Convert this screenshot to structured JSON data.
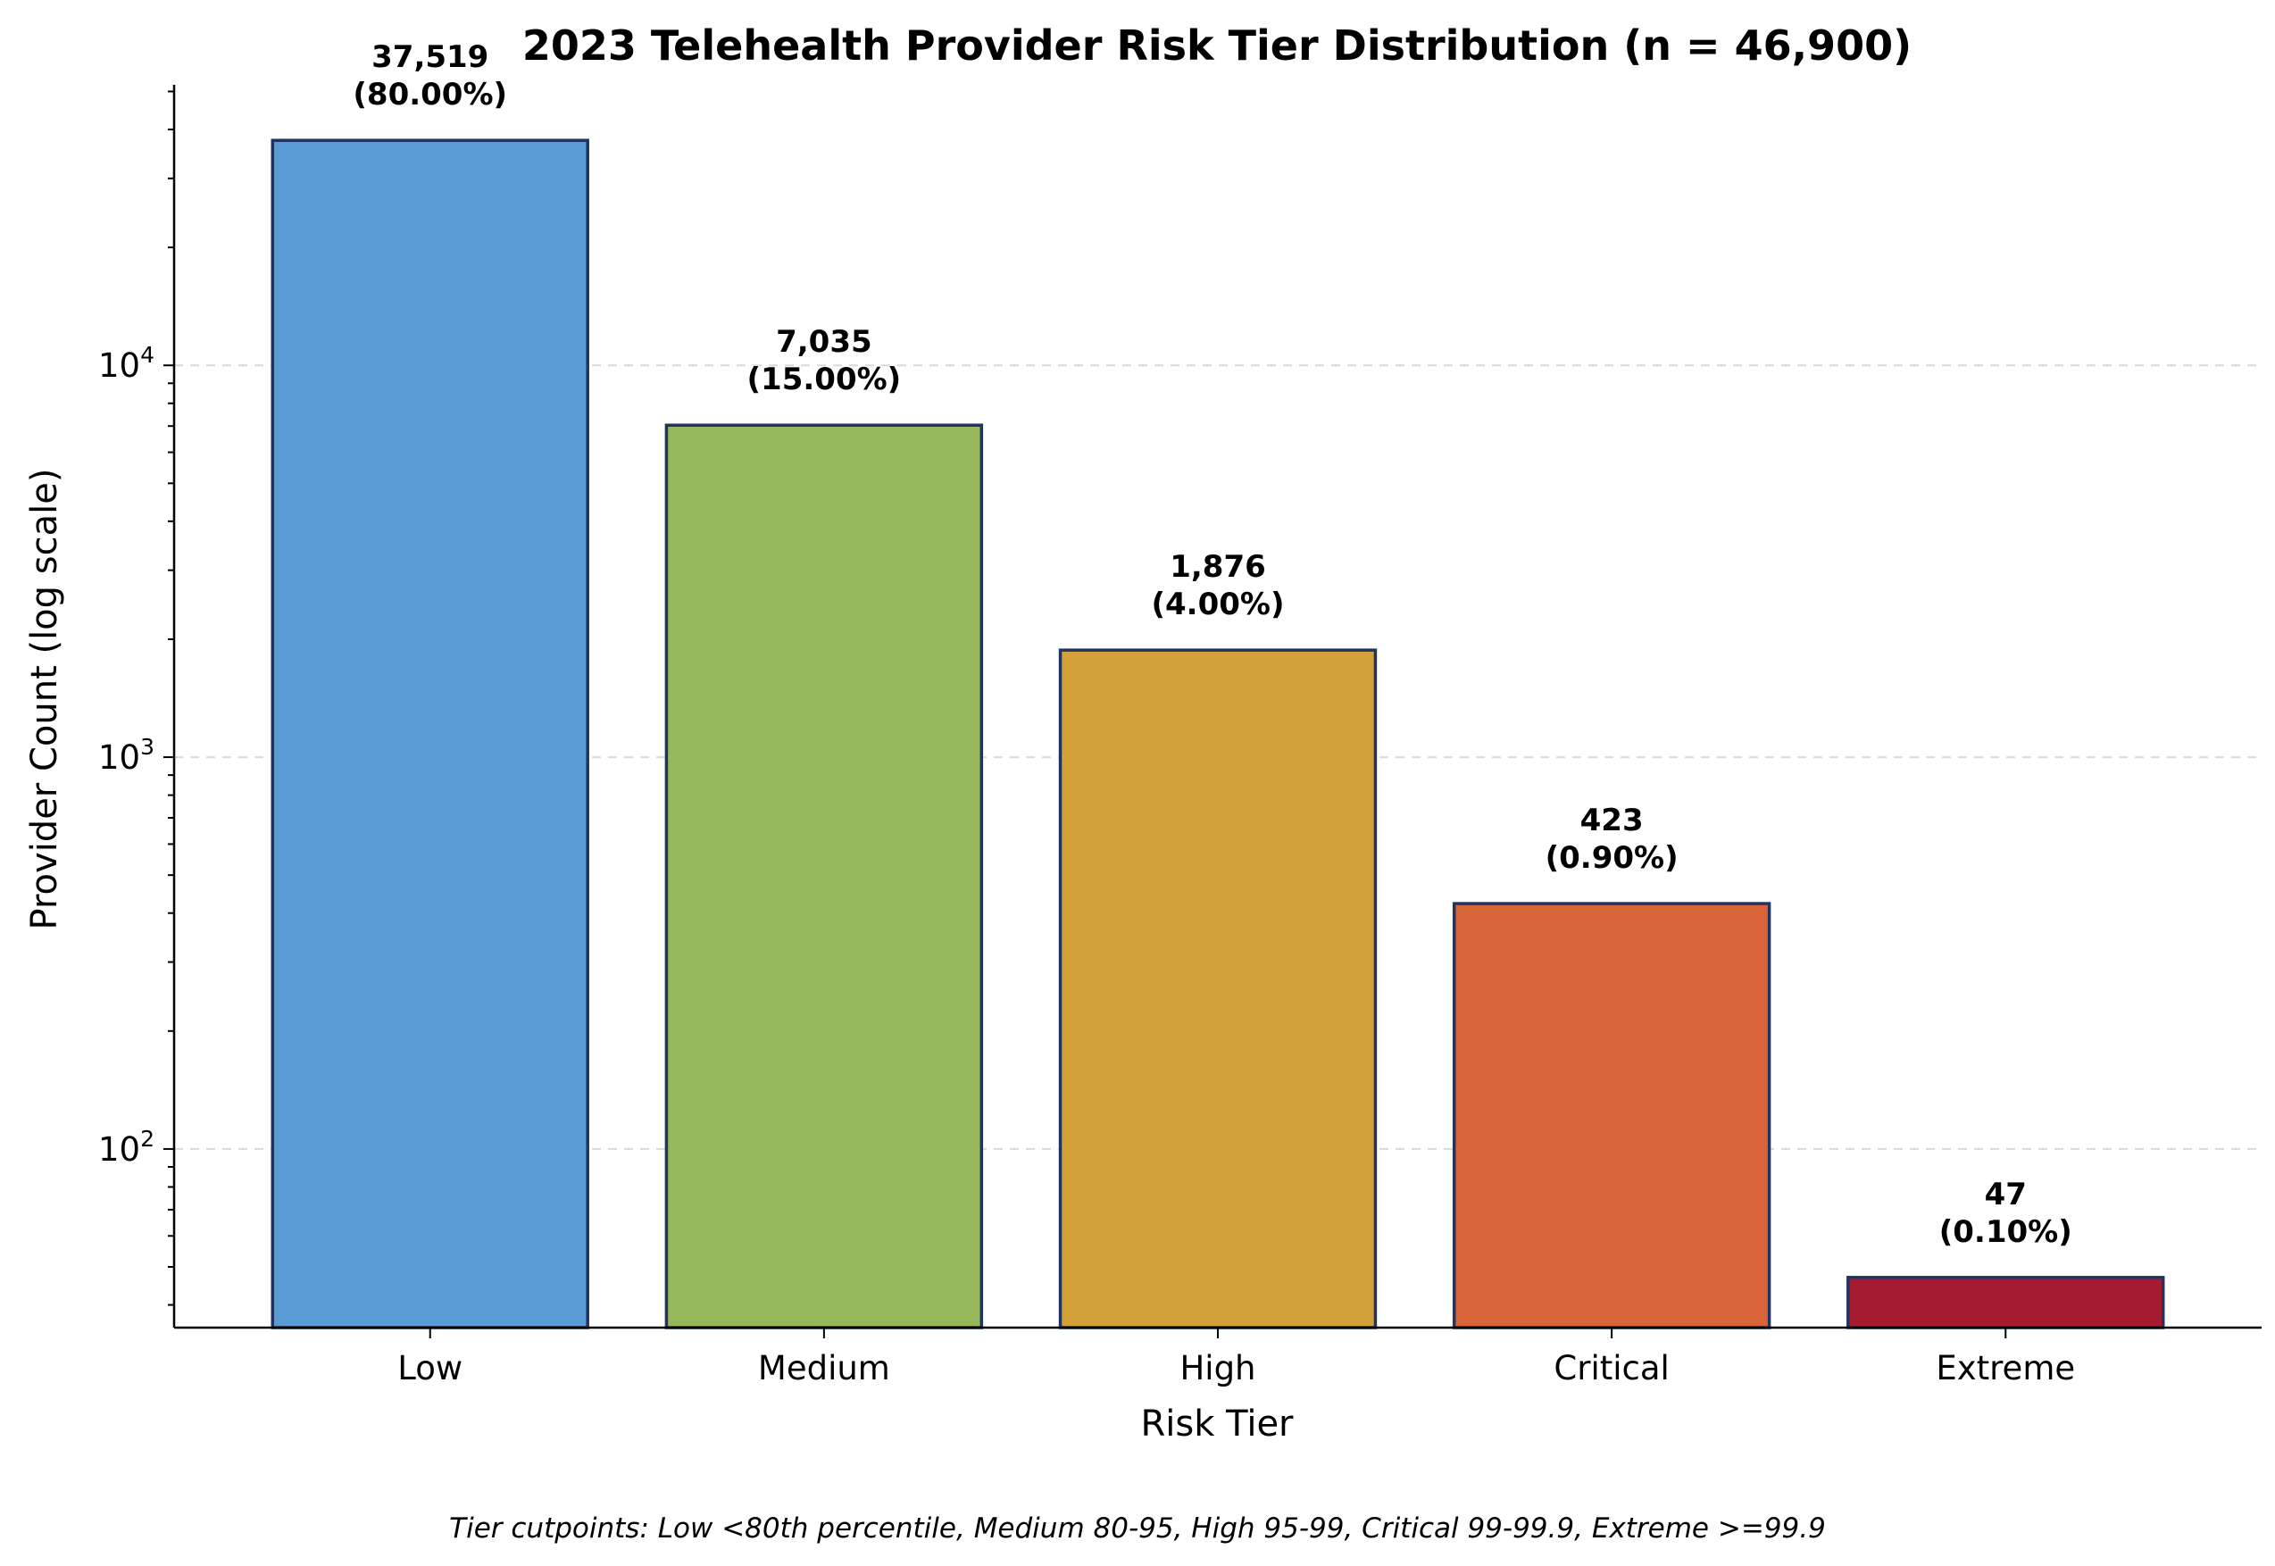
{
  "chart_data": {
    "type": "bar",
    "title": "2023 Telehealth Provider Risk Tier Distribution (n = 46,900)",
    "xlabel": "Risk Tier",
    "ylabel": "Provider Count (log scale)",
    "yscale": "log",
    "ylim": [
      35,
      52000
    ],
    "grid": "horizontal dashed at major ticks",
    "categories": [
      "Low",
      "Medium",
      "High",
      "Critical",
      "Extreme"
    ],
    "values": [
      37519,
      7035,
      1876,
      423,
      47
    ],
    "value_labels": [
      "37,519",
      "7,035",
      "1,876",
      "423",
      "47"
    ],
    "percent_labels": [
      "(80.00%)",
      "(15.00%)",
      "(4.00%)",
      "(0.90%)",
      "(0.10%)"
    ],
    "colors": [
      "#5b9bd5",
      "#96b85a",
      "#d4a03a",
      "#d9643a",
      "#a51c30"
    ],
    "edge_color": "#1f3560",
    "major_ticks": [
      {
        "value": 100,
        "base": "10",
        "exp": "2"
      },
      {
        "value": 1000,
        "base": "10",
        "exp": "3"
      },
      {
        "value": 10000,
        "base": "10",
        "exp": "4"
      }
    ]
  },
  "footnote": "Tier cutpoints: Low <80th percentile, Medium 80-95, High 95-99, Critical 99-99.9, Extreme >=99.9"
}
